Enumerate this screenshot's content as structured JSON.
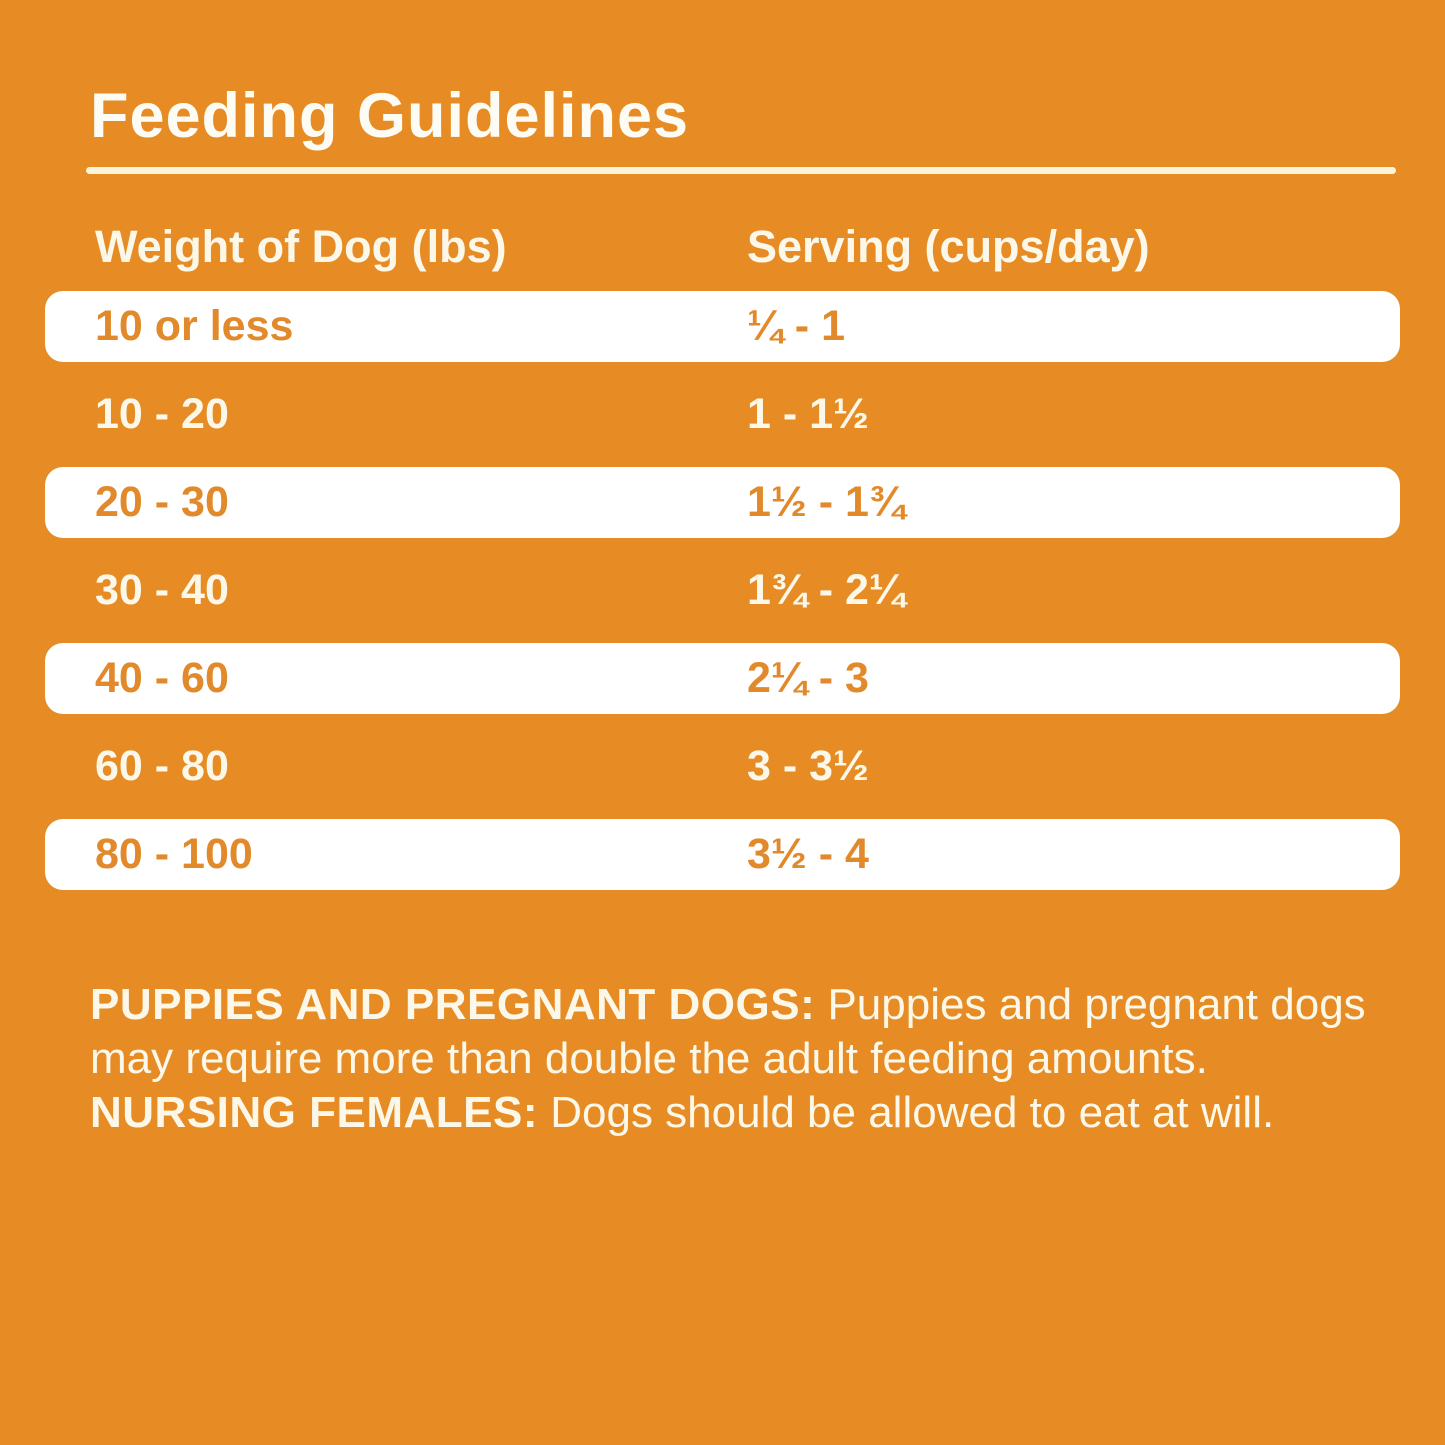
{
  "page": {
    "background_color": "#E78C24",
    "row_highlight_color": "#FFFFFF",
    "orange_text_color": "#E28A2B",
    "cream_text_color": "#FBF8EA"
  },
  "title": "Feeding Guidelines",
  "table": {
    "headers": {
      "weight": "Weight of Dog (lbs)",
      "serving": "Serving (cups/day)"
    },
    "rows": [
      {
        "weight": "10 or less",
        "serving": "¼ - 1",
        "highlight": true
      },
      {
        "weight": "10 - 20",
        "serving": "1 - 1½",
        "highlight": false
      },
      {
        "weight": "20 - 30",
        "serving": "1½ - 1¾",
        "highlight": true
      },
      {
        "weight": "30 - 40",
        "serving": "1¾ - 2¼",
        "highlight": false
      },
      {
        "weight": "40 - 60",
        "serving": "2¼ - 3",
        "highlight": true
      },
      {
        "weight": "60 - 80",
        "serving": "3 - 3½",
        "highlight": false
      },
      {
        "weight": "80 - 100",
        "serving": "3½ - 4",
        "highlight": true
      }
    ]
  },
  "footnote": {
    "segments": [
      {
        "text": "PUPPIES AND PREGNANT DOGS:",
        "bold": true
      },
      {
        "text": " Puppies and pregnant dogs may require more than double the adult feeding amounts. ",
        "bold": false
      },
      {
        "text": "NURSING FEMALES:",
        "bold": true
      },
      {
        "text": " Dogs should be allowed to eat at will.",
        "bold": false
      }
    ]
  }
}
